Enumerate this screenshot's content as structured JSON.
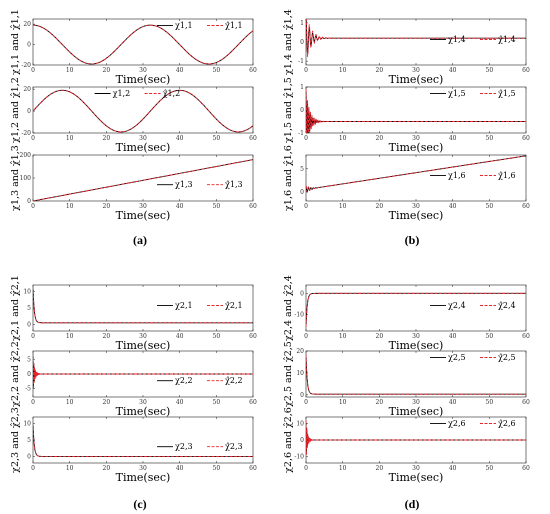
{
  "chart_data": [
    {
      "type": "line",
      "panel": "a",
      "row": 0,
      "xlabel": "Time(sec)",
      "ylabel": "χ1,1 and χ̂1,1",
      "xlim": [
        0,
        60
      ],
      "ylim": [
        -20,
        25
      ],
      "yticks": [
        -20,
        0,
        20
      ],
      "xticks": [
        0,
        10,
        20,
        30,
        40,
        50,
        60
      ],
      "legend": [
        "χ1,1",
        "χ̂1,1"
      ],
      "legend_position": "top-right",
      "series": [
        {
          "name": "χ1,1",
          "color": "#000000",
          "func": "sin",
          "amp": 19,
          "offset": 0,
          "period": 32,
          "phase": 1.5708
        },
        {
          "name": "χ̂1,1",
          "color": "#e8262e",
          "dashed": true,
          "func": "sin",
          "amp": 19,
          "offset": 0,
          "period": 32,
          "phase": 1.5708
        }
      ]
    },
    {
      "type": "line",
      "panel": "a",
      "row": 1,
      "xlabel": "Time(sec)",
      "ylabel": "χ1,2 and χ̂1,2",
      "xlim": [
        0,
        60
      ],
      "ylim": [
        -20,
        22
      ],
      "yticks": [
        -20,
        0,
        20
      ],
      "xticks": [
        0,
        10,
        20,
        30,
        40,
        50,
        60
      ],
      "legend": [
        "χ1,2",
        "χ̂1,2"
      ],
      "legend_position": "top-center",
      "series": [
        {
          "name": "χ1,2",
          "color": "#000000",
          "func": "sin",
          "amp": 19,
          "offset": 0,
          "period": 32,
          "phase": 0
        },
        {
          "name": "χ̂1,2",
          "color": "#e8262e",
          "dashed": true,
          "func": "sin",
          "amp": 19,
          "offset": 0,
          "period": 32,
          "phase": 0
        }
      ]
    },
    {
      "type": "line",
      "panel": "a",
      "row": 2,
      "xlabel": "Time(sec)",
      "ylabel": "χ1,3 and χ̂1,3",
      "xlim": [
        0,
        60
      ],
      "ylim": [
        0,
        200
      ],
      "yticks": [
        0,
        100,
        200
      ],
      "xticks": [
        0,
        10,
        20,
        30,
        40,
        50,
        60
      ],
      "legend": [
        "χ1,3",
        "χ̂1,3"
      ],
      "legend_position": "bottom-right",
      "series": [
        {
          "name": "χ1,3",
          "color": "#000000",
          "func": "linear",
          "slope": 3,
          "offset": 0
        },
        {
          "name": "χ̂1,3",
          "color": "#e8262e",
          "dashed": true,
          "func": "linear",
          "slope": 3,
          "offset": 0
        }
      ]
    },
    {
      "type": "line",
      "panel": "b",
      "row": 0,
      "xlabel": "Time(sec)",
      "ylabel": "χ1,4 and χ̂1,4",
      "xlim": [
        0,
        60
      ],
      "ylim": [
        -1.2,
        1.2
      ],
      "yticks": [
        -1,
        0,
        1
      ],
      "xticks": [
        0,
        10,
        20,
        30,
        40,
        50,
        60
      ],
      "legend": [
        "χ1,4",
        "χ̂1,4"
      ],
      "legend_position": "center-right",
      "series": [
        {
          "name": "χ1,4",
          "color": "#000000",
          "func": "transient",
          "final": 0.2,
          "amp": 1.1,
          "freq": 2.2,
          "decay": 0.8
        },
        {
          "name": "χ̂1,4",
          "color": "#e8262e",
          "dashed": true,
          "func": "transient",
          "final": 0.2,
          "amp": 1.3,
          "freq": 2.2,
          "decay": 0.7
        }
      ]
    },
    {
      "type": "line",
      "panel": "b",
      "row": 1,
      "xlabel": "Time(sec)",
      "ylabel": "χ1,5 and χ̂1,5",
      "xlim": [
        0,
        60
      ],
      "ylim": [
        -1,
        1
      ],
      "yticks": [
        -1,
        0,
        1
      ],
      "xticks": [
        0,
        10,
        20,
        30,
        40,
        50,
        60
      ],
      "legend": [
        "χ1,5",
        "χ̂1,5"
      ],
      "legend_position": "top-right",
      "series": [
        {
          "name": "χ1,5",
          "color": "#000000",
          "func": "transient",
          "final": -0.5,
          "amp": 1.4,
          "freq": 5,
          "decay": 1.2
        },
        {
          "name": "χ̂1,5",
          "color": "#e8262e",
          "dashed": true,
          "func": "transient",
          "final": -0.5,
          "amp": 1.4,
          "freq": 5,
          "decay": 1.0
        }
      ]
    },
    {
      "type": "line",
      "panel": "b",
      "row": 2,
      "xlabel": "Time(sec)",
      "ylabel": "χ1,6 and χ̂1,6",
      "xlim": [
        0,
        60
      ],
      "ylim": [
        -2,
        8
      ],
      "yticks": [
        0,
        5
      ],
      "xticks": [
        0,
        10,
        20,
        30,
        40,
        50,
        60
      ],
      "legend": [
        "χ1,6",
        "χ̂1,6"
      ],
      "legend_position": "center-right",
      "series": [
        {
          "name": "χ1,6",
          "color": "#000000",
          "func": "ramp",
          "start": 0.5,
          "slope": 0.122,
          "amp": 0.8,
          "freq": 3,
          "decay": 0.9
        },
        {
          "name": "χ̂1,6",
          "color": "#e8262e",
          "dashed": true,
          "func": "ramp",
          "start": 0.5,
          "slope": 0.122,
          "amp": 0.8,
          "freq": 3,
          "decay": 0.9
        }
      ]
    },
    {
      "type": "line",
      "panel": "c",
      "row": 0,
      "xlabel": "Time(sec)",
      "ylabel": "χ2,1 and χ̂2,1",
      "xlim": [
        0,
        60
      ],
      "ylim": [
        -2,
        12
      ],
      "yticks": [
        0,
        5,
        10
      ],
      "xticks": [
        0,
        10,
        20,
        30,
        40,
        50,
        60
      ],
      "legend": [
        "χ2,1",
        "χ̂2,1"
      ],
      "legend_position": "center-right",
      "series": [
        {
          "name": "χ2,1",
          "color": "#000000",
          "func": "spike",
          "final": 0.5,
          "amp": 11,
          "decay": 3
        },
        {
          "name": "χ̂2,1",
          "color": "#e8262e",
          "dashed": true,
          "func": "spike",
          "final": 0.5,
          "amp": 11,
          "decay": 3
        }
      ]
    },
    {
      "type": "line",
      "panel": "c",
      "row": 1,
      "xlabel": "Time(sec)",
      "ylabel": "χ2,2 and χ̂2,2",
      "xlim": [
        0,
        60
      ],
      "ylim": [
        -8,
        8
      ],
      "yticks": [
        -5,
        0,
        5
      ],
      "xticks": [
        0,
        10,
        20,
        30,
        40,
        50,
        60
      ],
      "legend": [
        "χ2,2",
        "χ̂2,2"
      ],
      "legend_position": "bottom-right",
      "series": [
        {
          "name": "χ2,2",
          "color": "#000000",
          "func": "transient",
          "final": 0,
          "amp": 7,
          "freq": 9,
          "decay": 3
        },
        {
          "name": "χ̂2,2",
          "color": "#e8262e",
          "dashed": true,
          "func": "transient",
          "final": 0,
          "amp": 7,
          "freq": 9,
          "decay": 2.5
        }
      ]
    },
    {
      "type": "line",
      "panel": "c",
      "row": 2,
      "xlabel": "Time(sec)",
      "ylabel": "χ2,3 and χ̂2,3",
      "xlim": [
        0,
        60
      ],
      "ylim": [
        -2,
        12
      ],
      "yticks": [
        0,
        5,
        10
      ],
      "xticks": [
        0,
        10,
        20,
        30,
        40,
        50,
        60
      ],
      "legend": [
        "χ2,3",
        "χ̂2,3"
      ],
      "legend_position": "bottom-right",
      "series": [
        {
          "name": "χ2,3",
          "color": "#000000",
          "func": "spike",
          "final": 0,
          "amp": 10,
          "decay": 3
        },
        {
          "name": "χ̂2,3",
          "color": "#e8262e",
          "dashed": true,
          "func": "spike",
          "final": 0,
          "amp": 10,
          "decay": 3
        }
      ]
    },
    {
      "type": "line",
      "panel": "d",
      "row": 0,
      "xlabel": "Time(sec)",
      "ylabel": "χ2,4 and χ̂2,4",
      "xlim": [
        0,
        60
      ],
      "ylim": [
        -18,
        4
      ],
      "yticks": [
        -10,
        0
      ],
      "xticks": [
        0,
        10,
        20,
        30,
        40,
        50,
        60
      ],
      "legend": [
        "χ2,4",
        "χ̂2,4"
      ],
      "legend_position": "center-right",
      "series": [
        {
          "name": "χ2,4",
          "color": "#000000",
          "func": "spike",
          "final": 0,
          "amp": -16,
          "decay": 3
        },
        {
          "name": "χ̂2,4",
          "color": "#e8262e",
          "dashed": true,
          "func": "spike",
          "final": 0,
          "amp": -16,
          "decay": 3
        }
      ]
    },
    {
      "type": "line",
      "panel": "d",
      "row": 1,
      "xlabel": "Time(sec)",
      "ylabel": "χ2,5 and χ̂2,5",
      "xlim": [
        0,
        60
      ],
      "ylim": [
        -1,
        20
      ],
      "yticks": [
        0,
        10,
        20
      ],
      "xticks": [
        0,
        10,
        20,
        30,
        40,
        50,
        60
      ],
      "legend": [
        "χ2,5",
        "χ̂2,5"
      ],
      "legend_position": "top-right",
      "series": [
        {
          "name": "χ2,5",
          "color": "#000000",
          "func": "spike",
          "final": 0.3,
          "amp": 18,
          "decay": 3
        },
        {
          "name": "χ̂2,5",
          "color": "#e8262e",
          "dashed": true,
          "func": "spike",
          "final": 0.3,
          "amp": 18,
          "decay": 3
        }
      ]
    },
    {
      "type": "line",
      "panel": "d",
      "row": 2,
      "xlabel": "Time(sec)",
      "ylabel": "χ2,6 and χ̂2,6",
      "xlim": [
        0,
        60
      ],
      "ylim": [
        -14,
        14
      ],
      "yticks": [
        -10,
        0,
        10
      ],
      "xticks": [
        0,
        10,
        20,
        30,
        40,
        50,
        60
      ],
      "legend": [
        "χ2,6",
        "χ̂2,6"
      ],
      "legend_position": "top-right",
      "series": [
        {
          "name": "χ2,6",
          "color": "#000000",
          "func": "transient",
          "final": 0,
          "amp": 12,
          "freq": 9,
          "decay": 3
        },
        {
          "name": "χ̂2,6",
          "color": "#e8262e",
          "dashed": true,
          "func": "transient",
          "final": 0,
          "amp": 12,
          "freq": 9,
          "decay": 2.5
        }
      ]
    }
  ],
  "captions": {
    "a": "(a)",
    "b": "(b)",
    "c": "(c)",
    "d": "(d)"
  }
}
